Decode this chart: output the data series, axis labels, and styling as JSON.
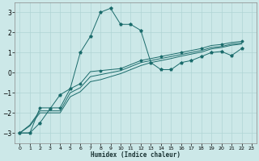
{
  "xlabel": "Humidex (Indice chaleur)",
  "xlim": [
    -0.5,
    23.5
  ],
  "ylim": [
    -3.5,
    3.5
  ],
  "yticks": [
    -3,
    -2,
    -1,
    0,
    1,
    2,
    3
  ],
  "xticks": [
    0,
    1,
    2,
    3,
    4,
    5,
    6,
    7,
    8,
    9,
    10,
    11,
    12,
    13,
    14,
    15,
    16,
    17,
    18,
    19,
    20,
    21,
    22,
    23
  ],
  "background_color": "#cce8e8",
  "grid_color": "#b0d4d4",
  "line_color": "#1a6b6b",
  "line1_y": [
    -3.0,
    -3.0,
    -2.5,
    -1.8,
    -1.1,
    -0.8,
    1.0,
    1.8,
    3.0,
    3.2,
    2.4,
    2.4,
    2.1,
    0.5,
    0.15,
    0.15,
    0.5,
    0.6,
    0.8,
    1.0,
    1.05,
    0.85,
    1.2
  ],
  "line2_y": [
    -3.0,
    -3.0,
    -1.75,
    -1.75,
    -1.75,
    -0.8,
    -0.55,
    0.05,
    0.1,
    0.15,
    0.2,
    0.4,
    0.6,
    0.7,
    0.8,
    0.9,
    1.0,
    1.1,
    1.2,
    1.35,
    1.4,
    1.5,
    1.55
  ],
  "line3_y": [
    -3.0,
    -2.6,
    -1.9,
    -1.9,
    -1.9,
    -1.0,
    -0.75,
    -0.2,
    -0.1,
    0.0,
    0.1,
    0.3,
    0.5,
    0.6,
    0.7,
    0.8,
    0.9,
    1.0,
    1.1,
    1.25,
    1.3,
    1.42,
    1.47
  ],
  "line4_y": [
    -3.0,
    -2.65,
    -2.0,
    -2.0,
    -2.0,
    -1.2,
    -0.95,
    -0.45,
    -0.35,
    -0.2,
    -0.05,
    0.15,
    0.35,
    0.5,
    0.6,
    0.7,
    0.82,
    0.92,
    1.02,
    1.18,
    1.25,
    1.36,
    1.42
  ]
}
